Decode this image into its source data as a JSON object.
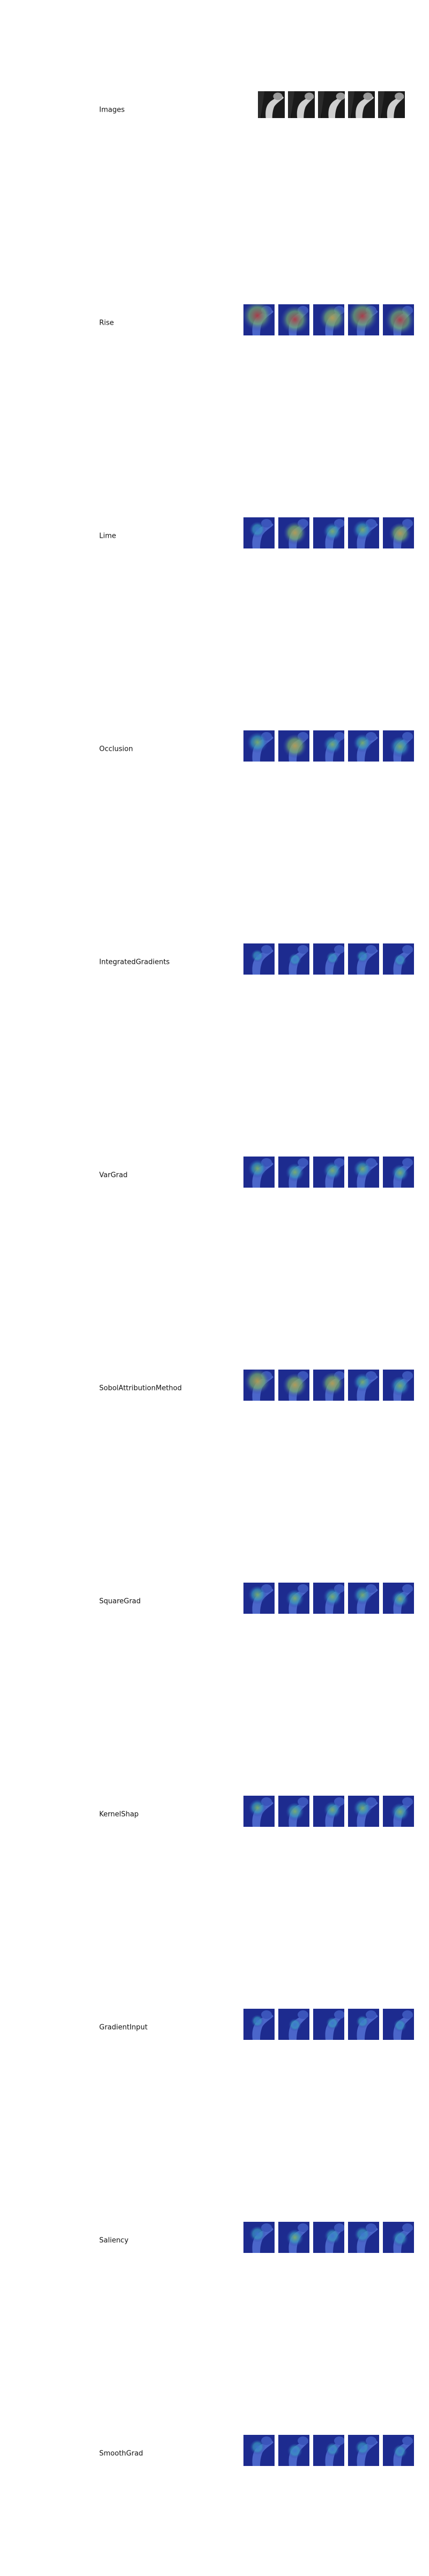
{
  "rows": [
    {
      "label": "Images",
      "kind": "xray",
      "heat": [
        0,
        0,
        0,
        0,
        0
      ]
    },
    {
      "label": "Rise",
      "kind": "heat",
      "heat": [
        0.85,
        0.8,
        0.7,
        0.9,
        0.85
      ]
    },
    {
      "label": "Lime",
      "kind": "heat",
      "heat": [
        0.25,
        0.55,
        0.35,
        0.4,
        0.5
      ]
    },
    {
      "label": "Occlusion",
      "kind": "heat",
      "heat": [
        0.45,
        0.6,
        0.35,
        0.35,
        0.45
      ]
    },
    {
      "label": "IntegratedGradients",
      "kind": "heat",
      "heat": [
        0.1,
        0.1,
        0.1,
        0.1,
        0.1
      ]
    },
    {
      "label": "VarGrad",
      "kind": "heat",
      "heat": [
        0.35,
        0.35,
        0.35,
        0.35,
        0.3
      ]
    },
    {
      "label": "SobolAttributionMethod",
      "kind": "heat",
      "heat": [
        0.65,
        0.6,
        0.55,
        0.35,
        0.4
      ]
    },
    {
      "label": "SquareGrad",
      "kind": "heat",
      "heat": [
        0.35,
        0.35,
        0.35,
        0.35,
        0.3
      ]
    },
    {
      "label": "KernelShap",
      "kind": "heat",
      "heat": [
        0.3,
        0.35,
        0.3,
        0.35,
        0.35
      ]
    },
    {
      "label": "GradientInput",
      "kind": "heat",
      "heat": [
        0.1,
        0.1,
        0.1,
        0.1,
        0.1
      ]
    },
    {
      "label": "Saliency",
      "kind": "heat",
      "heat": [
        0.25,
        0.3,
        0.25,
        0.25,
        0.25
      ]
    },
    {
      "label": "SmoothGrad",
      "kind": "heat",
      "heat": [
        0.2,
        0.2,
        0.15,
        0.2,
        0.15
      ]
    }
  ]
}
